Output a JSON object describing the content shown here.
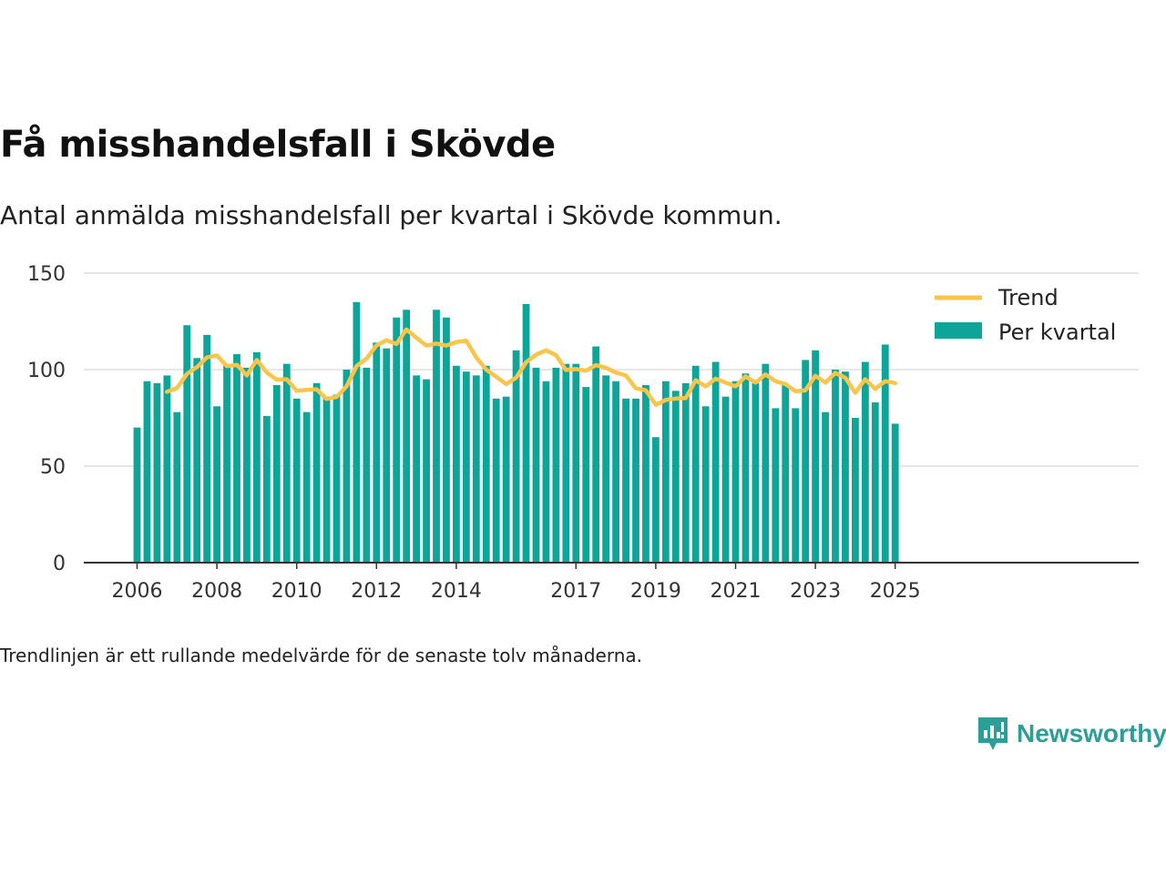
{
  "title": "Få misshandelsfall i Skövde",
  "subtitle": "Antal anmälda misshandelsfall per kvartal i Skövde kommun.",
  "note": "Trendlinjen är ett rullande medelvärde för de senaste tolv månaderna.",
  "brand": {
    "name": "Newsworthy",
    "icon": "newsworthy-logo-icon"
  },
  "colors": {
    "bar": "#0da597",
    "bar_light": "#c6ebe7",
    "trend": "#fbc44a",
    "grid": "#dddddd",
    "axis": "#333333"
  },
  "chart_data": {
    "type": "bar",
    "title": "Få misshandelsfall i Skövde",
    "subtitle": "Antal anmälda misshandelsfall per kvartal i Skövde kommun.",
    "ylim": [
      0,
      150
    ],
    "yticks": [
      0,
      50,
      100,
      150
    ],
    "xticks": [
      {
        "label": "2006",
        "year": 2006
      },
      {
        "label": "2008",
        "year": 2008
      },
      {
        "label": "2010",
        "year": 2010
      },
      {
        "label": "2012",
        "year": 2012
      },
      {
        "label": "2014",
        "year": 2014
      },
      {
        "label": "2017",
        "year": 2017
      },
      {
        "label": "2019",
        "year": 2019
      },
      {
        "label": "2021",
        "year": 2021
      },
      {
        "label": "2023",
        "year": 2023
      },
      {
        "label": "2025",
        "year": 2025
      }
    ],
    "start_year": 2006,
    "start_quarter": 1,
    "legend": {
      "position": "top-right",
      "entries": [
        "Trend",
        "Per kvartal"
      ]
    },
    "grid": true,
    "series": [
      {
        "name": "Per kvartal",
        "type": "bar",
        "values": [
          70,
          94,
          93,
          97,
          78,
          123,
          106,
          118,
          81,
          102,
          108,
          101,
          109,
          76,
          92,
          103,
          85,
          78,
          93,
          85,
          87,
          100,
          135,
          101,
          114,
          111,
          127,
          131,
          97,
          95,
          131,
          127,
          102,
          99,
          97,
          102,
          85,
          86,
          110,
          134,
          101,
          94,
          101,
          103,
          103,
          91,
          112,
          97,
          94,
          85,
          85,
          92,
          65,
          94,
          89,
          93,
          102,
          81,
          104,
          86,
          94,
          98,
          93,
          103,
          80,
          92,
          80,
          105,
          110,
          78,
          100,
          99,
          75,
          104,
          83,
          113,
          72
        ]
      },
      {
        "name": "Trend",
        "type": "line",
        "values": [
          null,
          null,
          null,
          88.5,
          90.5,
          97.8,
          101.3,
          106.3,
          107.3,
          101.8,
          102.5,
          97,
          105,
          98.5,
          94.8,
          95,
          89,
          89.5,
          89.8,
          84.8,
          85.8,
          91.3,
          101.8,
          105.8,
          112.5,
          115.3,
          113.3,
          120.8,
          116.5,
          112.5,
          113.5,
          112.5,
          114.3,
          115,
          106.3,
          100,
          96.3,
          92.5,
          95.8,
          103.8,
          107.8,
          110,
          107.5,
          99.8,
          100.3,
          99.5,
          102.3,
          101,
          98.5,
          97,
          90.3,
          89.3,
          81.8,
          84.3,
          85,
          85.3,
          94.5,
          91.3,
          95.3,
          93.3,
          91.3,
          96.5,
          93.3,
          97.5,
          94,
          92.5,
          88.8,
          89.3,
          96.8,
          93.3,
          98.3,
          95.8,
          88,
          95,
          90,
          94,
          93
        ]
      }
    ]
  }
}
